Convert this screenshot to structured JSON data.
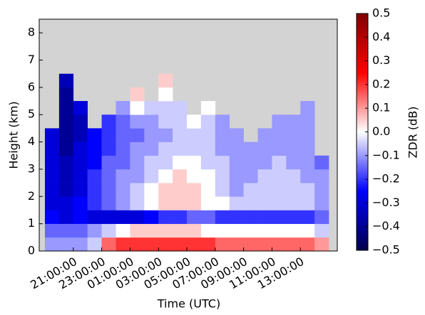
{
  "chart_data": {
    "type": "heatmap",
    "x_label": "Time (UTC)",
    "y_label": "Height (km)",
    "colorbar_label": "ZDR (dB)",
    "colormap": "seismic",
    "background": "#d3d3d3",
    "xlim": [
      18.6,
      39.6
    ],
    "xticks": [
      {
        "value": 21,
        "label": "21:00:00"
      },
      {
        "value": 23,
        "label": "23:00:00"
      },
      {
        "value": 25,
        "label": "01:00:00"
      },
      {
        "value": 27,
        "label": "03:00:00"
      },
      {
        "value": 29,
        "label": "05:00:00"
      },
      {
        "value": 31,
        "label": "07:00:00"
      },
      {
        "value": 33,
        "label": "09:00:00"
      },
      {
        "value": 35,
        "label": "11:00:00"
      },
      {
        "value": 37,
        "label": "13:00:00"
      }
    ],
    "ylim": [
      0,
      8.5
    ],
    "yticks": [
      0,
      1,
      2,
      3,
      4,
      5,
      6,
      7,
      8
    ],
    "clim": [
      -0.5,
      0.5
    ],
    "cticks": [
      {
        "value": -0.5,
        "label": "−0.5"
      },
      {
        "value": -0.4,
        "label": "−0.4"
      },
      {
        "value": -0.3,
        "label": "−0.3"
      },
      {
        "value": -0.2,
        "label": "−0.2"
      },
      {
        "value": -0.1,
        "label": "−0.1"
      },
      {
        "value": 0,
        "label": "0.0"
      },
      0.1,
      0.2,
      0.3,
      0.4,
      0.5
    ],
    "x": [
      19.5,
      20.5,
      21.5,
      22.5,
      23.5,
      24.5,
      25.5,
      26.5,
      27.5,
      28.5,
      29.5,
      30.5,
      31.5,
      32.5,
      33.5,
      34.5,
      35.5,
      36.5,
      37.5,
      38.5
    ],
    "y": [
      0.25,
      0.75,
      1.25,
      1.75,
      2.25,
      2.75,
      3.25,
      3.75,
      4.25,
      4.75,
      5.25,
      5.75,
      6.25
    ],
    "z": [
      [
        -0.1,
        -0.1,
        -0.1,
        -0.05,
        0.15,
        0.2,
        0.2,
        0.2,
        0.2,
        0.2,
        0.2,
        0.2,
        0.15,
        0.15,
        0.15,
        0.15,
        0.15,
        0.15,
        0.15,
        0.1
      ],
      [
        -0.15,
        -0.15,
        -0.15,
        -0.1,
        -0.05,
        0,
        0.05,
        0.05,
        0.05,
        0.05,
        0.05,
        0,
        0,
        0,
        0,
        0,
        0,
        0,
        0,
        -0.05
      ],
      [
        -0.25,
        -0.3,
        -0.25,
        -0.3,
        -0.3,
        -0.3,
        -0.3,
        -0.25,
        -0.2,
        -0.2,
        -0.15,
        -0.15,
        -0.2,
        -0.2,
        -0.2,
        -0.2,
        -0.2,
        -0.2,
        -0.2,
        -0.15
      ],
      [
        -0.3,
        -0.3,
        -0.25,
        -0.2,
        -0.15,
        -0.1,
        -0.05,
        0,
        0.05,
        0.05,
        0.05,
        0,
        0,
        -0.05,
        -0.05,
        -0.05,
        -0.05,
        -0.05,
        -0.05,
        -0.1
      ],
      [
        -0.3,
        -0.35,
        -0.3,
        -0.2,
        -0.15,
        -0.1,
        -0.05,
        0,
        0.05,
        0.05,
        0.05,
        0,
        -0.05,
        -0.1,
        -0.05,
        -0.05,
        -0.05,
        -0.05,
        -0.05,
        -0.1
      ],
      [
        -0.3,
        -0.35,
        -0.3,
        -0.2,
        -0.15,
        -0.1,
        -0.1,
        -0.05,
        0,
        0.05,
        0,
        0,
        -0.05,
        -0.1,
        -0.1,
        -0.05,
        -0.05,
        -0.05,
        -0.1,
        -0.1
      ],
      [
        -0.3,
        -0.35,
        -0.3,
        -0.25,
        -0.15,
        -0.15,
        -0.1,
        -0.05,
        -0.05,
        0,
        0,
        -0.05,
        -0.05,
        -0.1,
        -0.1,
        -0.1,
        -0.05,
        -0.1,
        -0.1,
        -0.15
      ],
      [
        -0.3,
        -0.4,
        -0.3,
        -0.25,
        -0.2,
        -0.15,
        -0.1,
        -0.1,
        -0.05,
        -0.05,
        -0.05,
        -0.05,
        -0.1,
        -0.1,
        -0.1,
        -0.1,
        -0.1,
        -0.1,
        -0.1,
        null
      ],
      [
        -0.3,
        -0.4,
        -0.35,
        -0.25,
        -0.2,
        -0.15,
        -0.15,
        -0.1,
        -0.1,
        -0.05,
        -0.05,
        -0.05,
        -0.1,
        -0.1,
        null,
        -0.1,
        -0.1,
        -0.1,
        -0.1,
        null
      ],
      [
        null,
        -0.4,
        -0.35,
        null,
        -0.2,
        -0.15,
        -0.1,
        -0.1,
        -0.05,
        -0.05,
        0,
        -0.05,
        -0.1,
        null,
        null,
        null,
        -0.1,
        -0.1,
        -0.1,
        null
      ],
      [
        null,
        -0.4,
        -0.3,
        null,
        null,
        -0.1,
        0,
        -0.05,
        -0.05,
        -0.05,
        null,
        0,
        null,
        null,
        null,
        null,
        null,
        null,
        -0.1,
        null
      ],
      [
        null,
        -0.4,
        null,
        null,
        null,
        null,
        0.05,
        null,
        0,
        null,
        null,
        null,
        null,
        null,
        null,
        null,
        null,
        null,
        null,
        null
      ],
      [
        null,
        -0.35,
        null,
        null,
        null,
        null,
        null,
        null,
        0.05,
        null,
        null,
        null,
        null,
        null,
        null,
        null,
        null,
        null,
        null,
        null
      ]
    ]
  }
}
